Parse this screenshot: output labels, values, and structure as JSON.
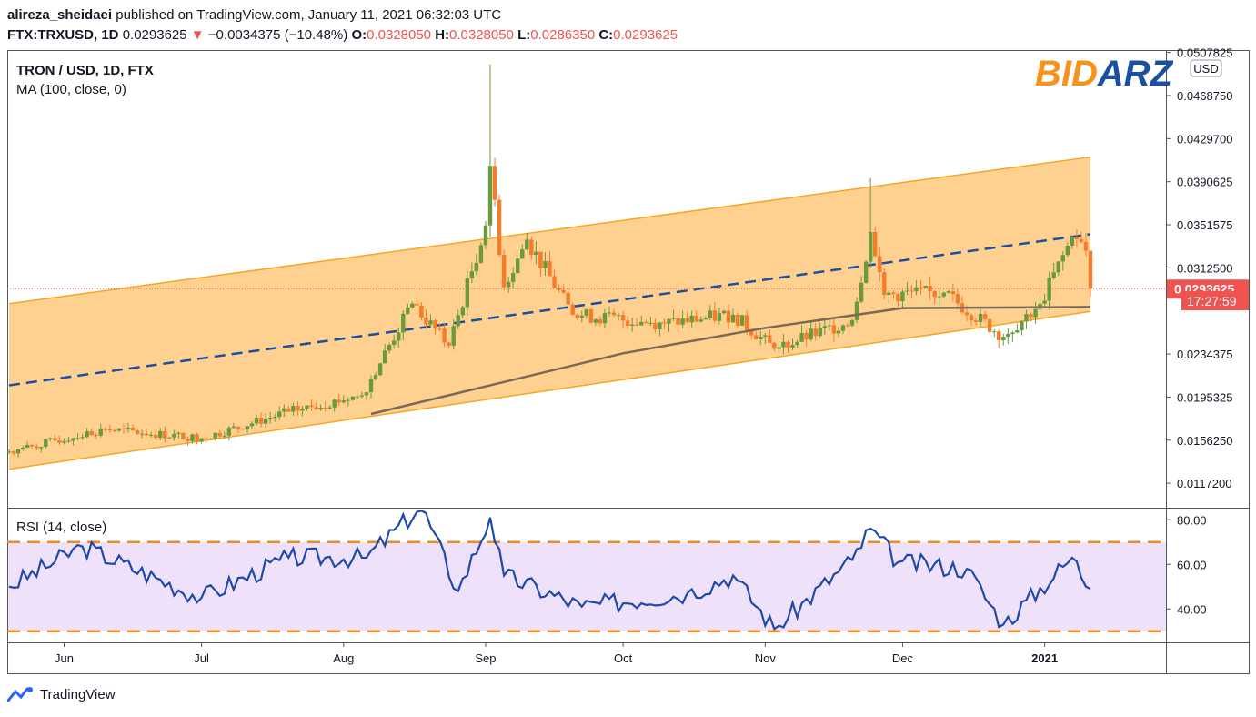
{
  "header": {
    "author": "alireza_sheidaei",
    "published_text": "published on TradingView.com, January 11, 2021 06:32:03 UTC",
    "symbol": "FTX:TRXUSD, 1D",
    "last": "0.0293625",
    "change_arrow": "▼",
    "change": "−0.0034375 (−10.48%)",
    "open_label": "O:",
    "open": "0.0328050",
    "high_label": "H:",
    "high": "0.0328050",
    "low_label": "L:",
    "low": "0.0286350",
    "close_label": "C:",
    "close": "0.0293625"
  },
  "legend": {
    "title": "TRON / USD, 1D, FTX",
    "ma": "MA (100, close, 0)",
    "rsi": "RSI (14, close)"
  },
  "logo": {
    "part1": "BID",
    "part2": "ARZ",
    "color1": "#f7931a",
    "color2": "#1b4fa0"
  },
  "price_axis": {
    "currency": "USD",
    "ticks": [
      "0.0507825",
      "0.0468750",
      "0.0429700",
      "0.0390625",
      "0.0351575",
      "0.0312500",
      "0.0234375",
      "0.0195325",
      "0.0156250",
      "0.0117200"
    ],
    "last_price_label": "0.0293625",
    "countdown_label": "17:27:59"
  },
  "rsi_axis": {
    "ticks": [
      "80.00",
      "60.00",
      "40.00"
    ]
  },
  "time_axis": {
    "labels": [
      "Jun",
      "Jul",
      "Aug",
      "Sep",
      "Oct",
      "Nov",
      "Dec",
      "2021"
    ]
  },
  "footer": {
    "brand": "TradingView"
  },
  "colors": {
    "up": "#6a9a3a",
    "down": "#f47c2b",
    "channel_fill": "#ffbf66",
    "channel_line": "#f5a623",
    "midline": "#1b4fa0",
    "ma": "#7a6a55",
    "rsi_line": "#1f4aa8",
    "rsi_band": "#efe1fa",
    "rsi_level": "#f08a1c",
    "last_price": "#ef5350"
  },
  "chart_data": {
    "type": "candlestick",
    "title": "TRON / USD, 1D, FTX",
    "x_range": [
      "2020-05-20",
      "2021-01-11"
    ],
    "y_range": [
      0.0095,
      0.051
    ],
    "last_price": 0.0293625,
    "key_points": [
      {
        "date": "2020-05-20",
        "close": 0.0146
      },
      {
        "date": "2020-06-10",
        "close": 0.0166
      },
      {
        "date": "2020-07-01",
        "close": 0.0158
      },
      {
        "date": "2020-07-20",
        "close": 0.0182
      },
      {
        "date": "2020-08-05",
        "close": 0.0197
      },
      {
        "date": "2020-08-16",
        "close": 0.028
      },
      {
        "date": "2020-08-24",
        "close": 0.0242
      },
      {
        "date": "2020-09-01",
        "close": 0.0351
      },
      {
        "date": "2020-09-02",
        "high": 0.0497,
        "close": 0.0405
      },
      {
        "date": "2020-09-05",
        "close": 0.0295
      },
      {
        "date": "2020-09-10",
        "close": 0.0338
      },
      {
        "date": "2020-09-20",
        "close": 0.027
      },
      {
        "date": "2020-10-10",
        "close": 0.0262
      },
      {
        "date": "2020-10-25",
        "close": 0.027
      },
      {
        "date": "2020-11-03",
        "close": 0.0239
      },
      {
        "date": "2020-11-20",
        "close": 0.0265
      },
      {
        "date": "2020-11-24",
        "high": 0.0394,
        "close": 0.0345
      },
      {
        "date": "2020-11-27",
        "close": 0.0288
      },
      {
        "date": "2020-12-10",
        "close": 0.029
      },
      {
        "date": "2020-12-23",
        "low": 0.0242,
        "close": 0.025
      },
      {
        "date": "2020-12-31",
        "close": 0.028
      },
      {
        "date": "2021-01-07",
        "close": 0.034
      },
      {
        "date": "2021-01-10",
        "close": 0.0328
      },
      {
        "date": "2021-01-11",
        "open": 0.032805,
        "high": 0.032805,
        "low": 0.028635,
        "close": 0.0293625
      }
    ],
    "channel": {
      "upper": [
        {
          "date": "2020-05-20",
          "price": 0.028
        },
        {
          "date": "2021-01-11",
          "price": 0.0413
        }
      ],
      "middle": [
        {
          "date": "2020-05-20",
          "price": 0.0206
        },
        {
          "date": "2021-01-11",
          "price": 0.0343
        }
      ],
      "lower": [
        {
          "date": "2020-05-20",
          "price": 0.013
        },
        {
          "date": "2021-01-11",
          "price": 0.0273
        }
      ]
    },
    "ma100": [
      {
        "date": "2020-08-07",
        "value": 0.018
      },
      {
        "date": "2020-09-01",
        "value": 0.0205
      },
      {
        "date": "2020-10-01",
        "value": 0.0235
      },
      {
        "date": "2020-11-01",
        "value": 0.0258
      },
      {
        "date": "2020-12-01",
        "value": 0.0276
      },
      {
        "date": "2021-01-11",
        "value": 0.0277
      }
    ],
    "rsi": {
      "name": "RSI (14, close)",
      "levels": [
        70,
        30
      ],
      "ylim": [
        25,
        85
      ],
      "key_points": [
        {
          "date": "2020-05-20",
          "value": 50
        },
        {
          "date": "2020-06-05",
          "value": 68
        },
        {
          "date": "2020-07-01",
          "value": 45
        },
        {
          "date": "2020-07-20",
          "value": 63
        },
        {
          "date": "2020-08-06",
          "value": 63
        },
        {
          "date": "2020-08-18",
          "value": 86
        },
        {
          "date": "2020-08-26",
          "value": 48
        },
        {
          "date": "2020-09-02",
          "value": 81
        },
        {
          "date": "2020-09-05",
          "value": 55
        },
        {
          "date": "2020-09-22",
          "value": 41
        },
        {
          "date": "2020-10-15",
          "value": 47
        },
        {
          "date": "2020-10-25",
          "value": 55
        },
        {
          "date": "2020-11-03",
          "value": 31
        },
        {
          "date": "2020-11-20",
          "value": 62
        },
        {
          "date": "2020-11-24",
          "value": 76
        },
        {
          "date": "2020-11-30",
          "value": 61
        },
        {
          "date": "2020-12-15",
          "value": 58
        },
        {
          "date": "2020-12-23",
          "value": 33
        },
        {
          "date": "2021-01-07",
          "value": 63
        },
        {
          "date": "2021-01-11",
          "value": 49
        }
      ]
    },
    "x_labels": [
      "Jun",
      "Jul",
      "Aug",
      "Sep",
      "Oct",
      "Nov",
      "Dec",
      "2021"
    ]
  }
}
